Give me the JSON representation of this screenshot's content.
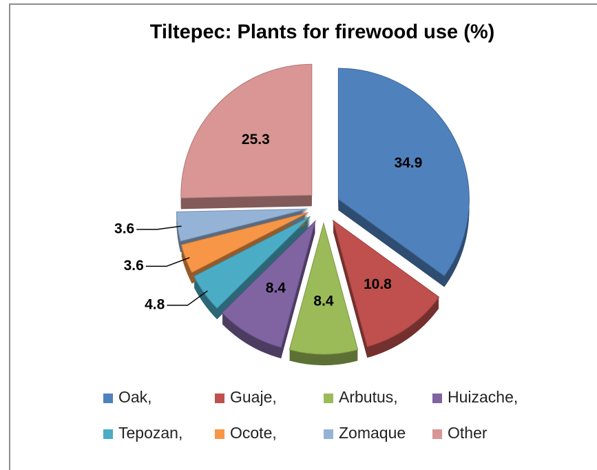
{
  "chart_data": {
    "type": "pie",
    "title": "Tiltepec:  Plants for firewood use (%)",
    "categories": [
      "Oak,",
      "Guaje,",
      "Arbutus,",
      "Huizache,",
      "Tepozan,",
      "Ocote,",
      "Zomaque",
      "Other"
    ],
    "values": [
      34.9,
      10.8,
      8.4,
      8.4,
      4.8,
      3.6,
      3.6,
      25.3
    ],
    "colors": [
      "#4f81bd",
      "#c0504d",
      "#9bbb59",
      "#8064a2",
      "#4bacc6",
      "#f79646",
      "#95b3d7",
      "#d99694"
    ]
  }
}
